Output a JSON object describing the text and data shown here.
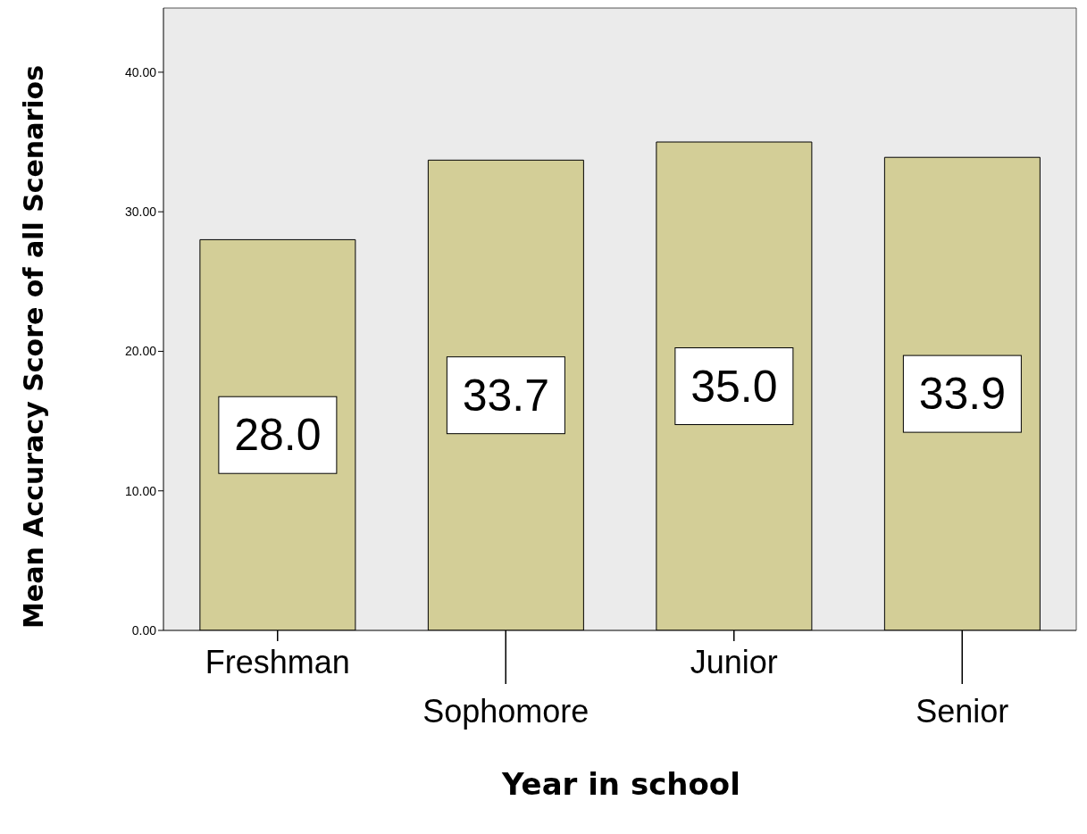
{
  "chart_data": {
    "type": "bar",
    "xlabel": "Year in school",
    "ylabel": "Mean Accuracy Score of all Scenarios",
    "categories": [
      "Freshman",
      "Sophomore",
      "Junior",
      "Senior"
    ],
    "values": [
      28.0,
      33.7,
      35.0,
      33.9
    ],
    "value_labels": [
      "28.0",
      "33.7",
      "35.0",
      "33.9"
    ],
    "color": "#d3ce97",
    "ylim": [
      0,
      44.6
    ],
    "yticks": [
      {
        "value": 0,
        "label": "0.00"
      },
      {
        "value": 10,
        "label": "10.00"
      },
      {
        "value": 20,
        "label": "20.00"
      },
      {
        "value": 30,
        "label": "30.00"
      },
      {
        "value": 40,
        "label": "40.00"
      }
    ],
    "grid": false
  }
}
